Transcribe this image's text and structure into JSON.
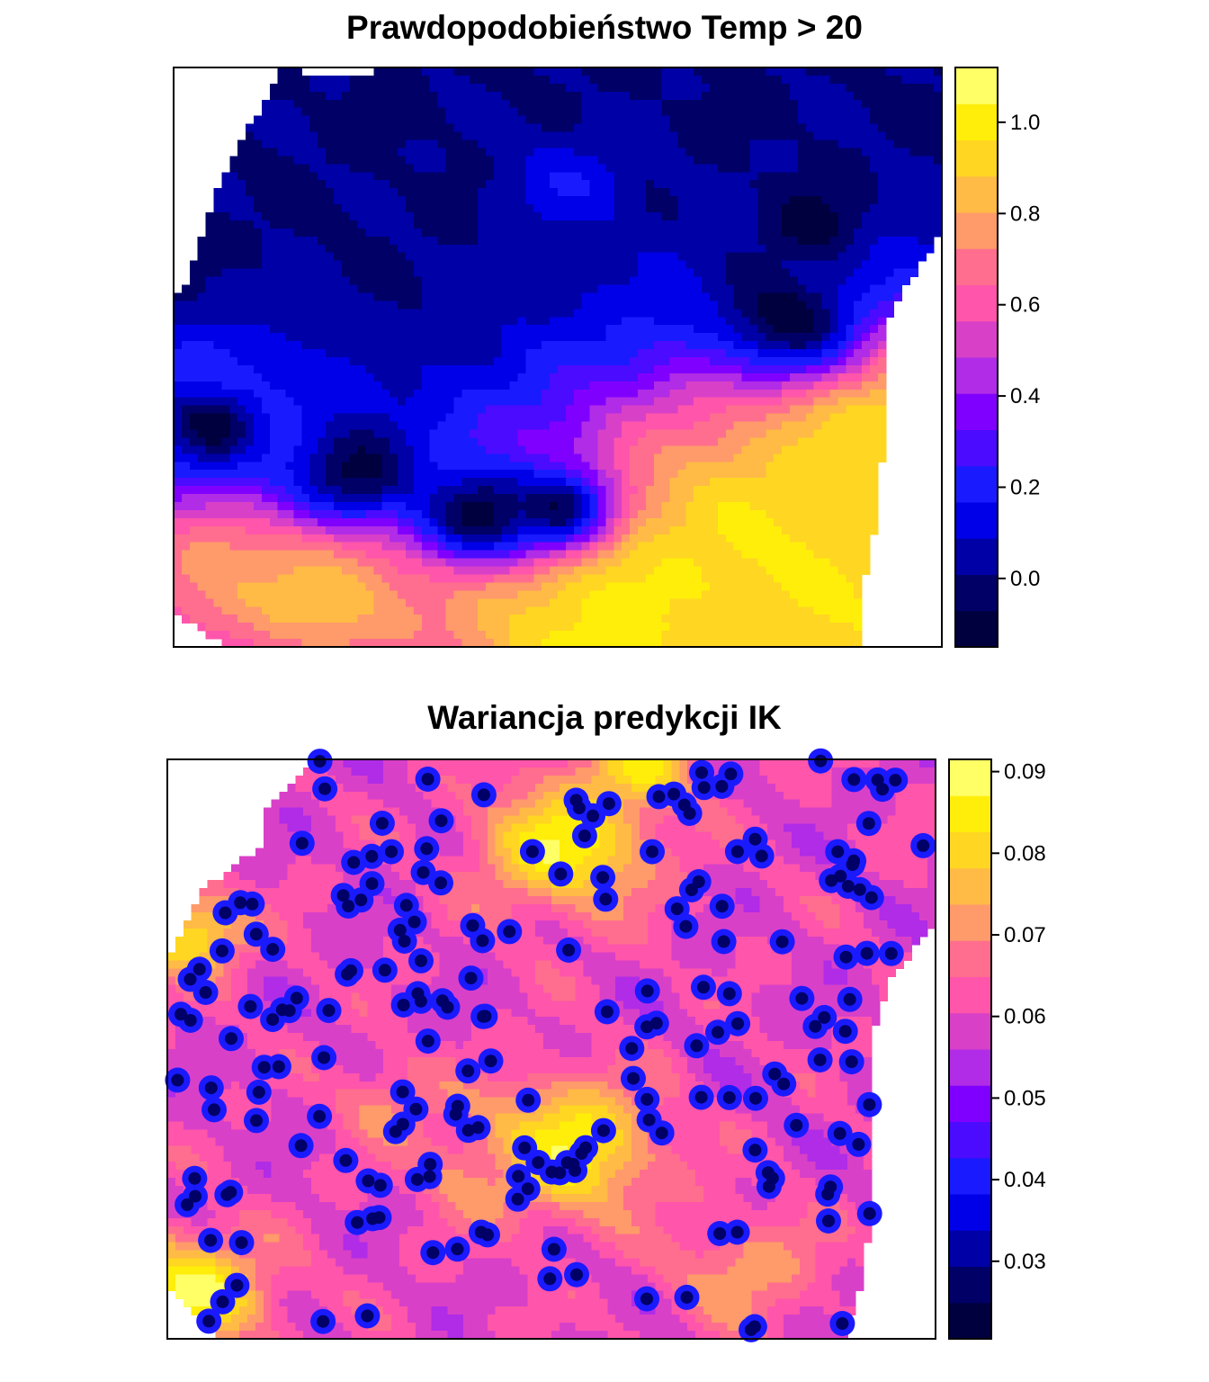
{
  "chart_data": [
    {
      "type": "heatmap",
      "title": "Prawdopodobieństwo Temp > 20",
      "colorbar": {
        "range": [
          -0.15,
          1.12
        ],
        "ticks": [
          0.0,
          0.2,
          0.4,
          0.6,
          0.8,
          1.0
        ],
        "tick_labels": [
          "0.0",
          "0.2",
          "0.4",
          "0.6",
          "0.8",
          "1.0"
        ],
        "colors": [
          "#00003F",
          "#000067",
          "#0000A7",
          "#0000E8",
          "#1A1AFF",
          "#4B0BFF",
          "#8000FF",
          "#B02CE6",
          "#D940C8",
          "#FF55AA",
          "#FF6E8E",
          "#FF9A6A",
          "#FFBB45",
          "#FFD622",
          "#FFEE0A",
          "#FFFF66"
        ]
      },
      "field": {
        "base": 0.0,
        "features": [
          {
            "x": 0.06,
            "y": 0.87,
            "v": 0.78,
            "r": 0.13
          },
          {
            "x": 0.2,
            "y": 0.91,
            "v": 0.82,
            "r": 0.1
          },
          {
            "x": 0.55,
            "y": 0.97,
            "v": 0.98,
            "r": 0.2
          },
          {
            "x": 0.8,
            "y": 0.85,
            "v": 1.0,
            "r": 0.22
          },
          {
            "x": 0.9,
            "y": 0.6,
            "v": 0.95,
            "r": 0.14
          },
          {
            "x": 0.92,
            "y": 0.95,
            "v": 0.95,
            "r": 0.12
          },
          {
            "x": 0.06,
            "y": 0.6,
            "v": 0.3,
            "r": 0.1
          },
          {
            "x": 0.52,
            "y": 0.2,
            "v": 0.15,
            "r": 0.06
          },
          {
            "x": 0.8,
            "y": 0.43,
            "v": -0.12,
            "r": 0.08
          },
          {
            "x": 0.83,
            "y": 0.27,
            "v": -0.1,
            "r": 0.05
          },
          {
            "x": 0.24,
            "y": 0.7,
            "v": -0.1,
            "r": 0.06
          },
          {
            "x": 0.4,
            "y": 0.77,
            "v": -0.1,
            "r": 0.06
          },
          {
            "x": 0.5,
            "y": 0.76,
            "v": -0.09,
            "r": 0.05
          },
          {
            "x": 0.05,
            "y": 0.62,
            "v": -0.09,
            "r": 0.05
          }
        ]
      }
    },
    {
      "type": "heatmap",
      "title": "Wariancja predykcji IK",
      "colorbar": {
        "range": [
          0.0205,
          0.0915
        ],
        "ticks": [
          0.03,
          0.04,
          0.05,
          0.06,
          0.07,
          0.08,
          0.09
        ],
        "tick_labels": [
          "0.03",
          "0.04",
          "0.05",
          "0.06",
          "0.07",
          "0.08",
          "0.09"
        ],
        "colors": [
          "#00003F",
          "#000067",
          "#0000A7",
          "#0000E8",
          "#1A1AFF",
          "#4B0BFF",
          "#8000FF",
          "#B02CE6",
          "#D940C8",
          "#FF55AA",
          "#FF6E8E",
          "#FF9A6A",
          "#FFBB45",
          "#FFD622",
          "#FFEE0A",
          "#FFFF66"
        ]
      },
      "field": {
        "base": 0.06,
        "features": [
          {
            "x": 0.52,
            "y": 0.67,
            "v": 0.088,
            "r": 0.08
          },
          {
            "x": 0.52,
            "y": 0.15,
            "v": 0.086,
            "r": 0.08
          },
          {
            "x": 0.03,
            "y": 0.92,
            "v": 0.088,
            "r": 0.07
          },
          {
            "x": 0.03,
            "y": 0.3,
            "v": 0.085,
            "r": 0.05
          },
          {
            "x": 0.61,
            "y": 0.02,
            "v": 0.082,
            "r": 0.05
          },
          {
            "x": 0.41,
            "y": 0.7,
            "v": 0.072,
            "r": 0.06
          },
          {
            "x": 0.29,
            "y": 0.59,
            "v": 0.07,
            "r": 0.05
          },
          {
            "x": 0.75,
            "y": 0.88,
            "v": 0.072,
            "r": 0.07
          }
        ]
      }
    }
  ]
}
